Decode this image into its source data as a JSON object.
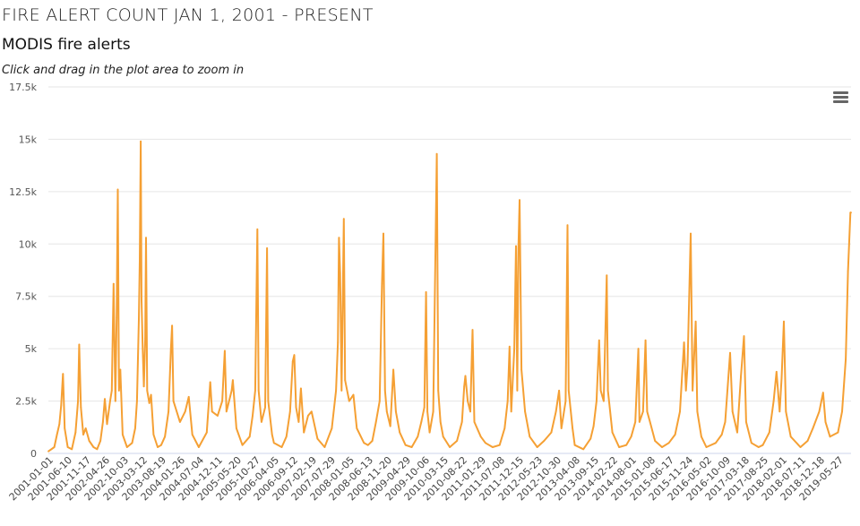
{
  "page_title": "FIRE ALERT COUNT JAN 1, 2001 - PRESENT",
  "chart_title": "MODIS fire alerts",
  "zoom_hint": "Click and drag in the plot area to zoom in",
  "menu_icon": "hamburger-menu-icon",
  "colors": {
    "series": "#f5a034",
    "grid": "#e6e6e6",
    "axis": "#ccd6eb"
  },
  "chart_data": {
    "type": "line",
    "title": "MODIS fire alerts",
    "xlabel": "",
    "ylabel": "",
    "grid": true,
    "ylim": [
      0,
      17500
    ],
    "xlim": [
      "2001-01-01",
      "2019-09-15"
    ],
    "yticks": [
      {
        "value": 0,
        "label": "0"
      },
      {
        "value": 2500,
        "label": "2.5k"
      },
      {
        "value": 5000,
        "label": "5k"
      },
      {
        "value": 7500,
        "label": "7.5k"
      },
      {
        "value": 10000,
        "label": "10k"
      },
      {
        "value": 12500,
        "label": "12.5k"
      },
      {
        "value": 15000,
        "label": "15k"
      },
      {
        "value": 17500,
        "label": "17.5k"
      }
    ],
    "xtick_labels": [
      "2001-01-01",
      "2001-06-10",
      "2001-11-17",
      "2002-04-26",
      "2002-10-03",
      "2003-03-12",
      "2003-08-19",
      "2004-01-26",
      "2004-07-04",
      "2004-12-11",
      "2005-05-20",
      "2005-10-27",
      "2006-04-05",
      "2006-09-12",
      "2007-02-19",
      "2007-07-29",
      "2008-01-05",
      "2008-06-13",
      "2008-11-20",
      "2009-04-29",
      "2009-10-06",
      "2010-03-15",
      "2010-08-22",
      "2011-01-29",
      "2011-07-08",
      "2011-12-15",
      "2012-05-23",
      "2012-10-30",
      "2013-04-08",
      "2013-09-15",
      "2014-02-22",
      "2014-08-01",
      "2015-01-08",
      "2015-06-17",
      "2015-11-24",
      "2016-05-02",
      "2016-10-09",
      "2017-03-18",
      "2017-08-25",
      "2018-02-01",
      "2018-07-11",
      "2018-12-18",
      "2019-05-27"
    ],
    "series": [
      {
        "values": [
          [
            "2001-01-01",
            100
          ],
          [
            "2001-02-20",
            300
          ],
          [
            "2001-03-15",
            900
          ],
          [
            "2001-04-05",
            1400
          ],
          [
            "2001-04-20",
            2300
          ],
          [
            "2001-05-05",
            3800
          ],
          [
            "2001-05-20",
            1200
          ],
          [
            "2001-06-15",
            300
          ],
          [
            "2001-07-20",
            200
          ],
          [
            "2001-08-20",
            1000
          ],
          [
            "2001-09-10",
            2500
          ],
          [
            "2001-09-20",
            5200
          ],
          [
            "2001-10-05",
            2200
          ],
          [
            "2001-10-25",
            900
          ],
          [
            "2001-11-15",
            1200
          ],
          [
            "2001-12-15",
            600
          ],
          [
            "2002-01-20",
            300
          ],
          [
            "2002-02-20",
            200
          ],
          [
            "2002-03-20",
            600
          ],
          [
            "2002-04-10",
            1500
          ],
          [
            "2002-04-26",
            2600
          ],
          [
            "2002-05-15",
            1400
          ],
          [
            "2002-06-10",
            2500
          ],
          [
            "2002-06-25",
            3000
          ],
          [
            "2002-07-10",
            8100
          ],
          [
            "2002-07-25",
            2500
          ],
          [
            "2002-08-05",
            6500
          ],
          [
            "2002-08-15",
            12600
          ],
          [
            "2002-08-25",
            3000
          ],
          [
            "2002-09-05",
            4000
          ],
          [
            "2002-09-25",
            900
          ],
          [
            "2002-11-01",
            300
          ],
          [
            "2002-12-15",
            500
          ],
          [
            "2003-01-10",
            1200
          ],
          [
            "2003-01-25",
            2500
          ],
          [
            "2003-02-10",
            6400
          ],
          [
            "2003-02-18",
            9200
          ],
          [
            "2003-02-26",
            14900
          ],
          [
            "2003-03-05",
            7300
          ],
          [
            "2003-03-15",
            5000
          ],
          [
            "2003-03-25",
            3200
          ],
          [
            "2003-04-05",
            5500
          ],
          [
            "2003-04-12",
            10300
          ],
          [
            "2003-04-22",
            3000
          ],
          [
            "2003-05-10",
            2400
          ],
          [
            "2003-05-25",
            2800
          ],
          [
            "2003-06-15",
            900
          ],
          [
            "2003-07-20",
            300
          ],
          [
            "2003-08-19",
            400
          ],
          [
            "2003-09-20",
            800
          ],
          [
            "2003-10-20",
            2000
          ],
          [
            "2003-11-10",
            5000
          ],
          [
            "2003-11-20",
            6100
          ],
          [
            "2003-12-01",
            2500
          ],
          [
            "2004-01-26",
            1500
          ],
          [
            "2004-03-10",
            2000
          ],
          [
            "2004-04-10",
            2700
          ],
          [
            "2004-05-10",
            900
          ],
          [
            "2004-07-04",
            300
          ],
          [
            "2004-09-10",
            1000
          ],
          [
            "2004-10-10",
            3400
          ],
          [
            "2004-10-25",
            2000
          ],
          [
            "2004-12-11",
            1800
          ],
          [
            "2005-01-20",
            2500
          ],
          [
            "2005-02-10",
            4900
          ],
          [
            "2005-02-25",
            2000
          ],
          [
            "2005-04-10",
            3000
          ],
          [
            "2005-04-20",
            3500
          ],
          [
            "2005-05-20",
            1200
          ],
          [
            "2005-07-10",
            400
          ],
          [
            "2005-09-10",
            800
          ],
          [
            "2005-10-05",
            1800
          ],
          [
            "2005-10-27",
            3000
          ],
          [
            "2005-11-15",
            10700
          ],
          [
            "2005-11-25",
            3000
          ],
          [
            "2005-12-20",
            1500
          ],
          [
            "2006-01-20",
            2200
          ],
          [
            "2006-02-05",
            9800
          ],
          [
            "2006-02-15",
            2500
          ],
          [
            "2006-03-20",
            900
          ],
          [
            "2006-04-05",
            500
          ],
          [
            "2006-06-10",
            300
          ],
          [
            "2006-07-20",
            800
          ],
          [
            "2006-08-20",
            2000
          ],
          [
            "2006-09-12",
            4400
          ],
          [
            "2006-09-25",
            4700
          ],
          [
            "2006-10-10",
            2200
          ],
          [
            "2006-11-01",
            1500
          ],
          [
            "2006-11-20",
            3100
          ],
          [
            "2006-12-15",
            1000
          ],
          [
            "2007-01-20",
            1800
          ],
          [
            "2007-02-19",
            2000
          ],
          [
            "2007-04-10",
            700
          ],
          [
            "2007-06-10",
            300
          ],
          [
            "2007-08-10",
            1200
          ],
          [
            "2007-09-15",
            3000
          ],
          [
            "2007-10-01",
            5300
          ],
          [
            "2007-10-10",
            10300
          ],
          [
            "2007-10-20",
            8600
          ],
          [
            "2007-11-01",
            3000
          ],
          [
            "2007-11-20",
            11200
          ],
          [
            "2007-12-01",
            3500
          ],
          [
            "2008-01-05",
            2500
          ],
          [
            "2008-02-10",
            2800
          ],
          [
            "2008-03-10",
            1200
          ],
          [
            "2008-05-10",
            500
          ],
          [
            "2008-06-13",
            400
          ],
          [
            "2008-07-20",
            600
          ],
          [
            "2008-08-20",
            1500
          ],
          [
            "2008-09-20",
            2500
          ],
          [
            "2008-10-10",
            8100
          ],
          [
            "2008-10-22",
            10500
          ],
          [
            "2008-11-05",
            3000
          ],
          [
            "2008-11-20",
            2000
          ],
          [
            "2008-12-20",
            1300
          ],
          [
            "2009-01-15",
            4000
          ],
          [
            "2009-02-05",
            2000
          ],
          [
            "2009-03-10",
            1000
          ],
          [
            "2009-04-29",
            400
          ],
          [
            "2009-06-20",
            300
          ],
          [
            "2009-08-10",
            800
          ],
          [
            "2009-09-10",
            1500
          ],
          [
            "2009-10-06",
            2200
          ],
          [
            "2009-10-20",
            7700
          ],
          [
            "2009-11-01",
            2000
          ],
          [
            "2009-11-20",
            1000
          ],
          [
            "2009-12-20",
            2000
          ],
          [
            "2010-01-20",
            14300
          ],
          [
            "2010-02-01",
            3000
          ],
          [
            "2010-02-20",
            1500
          ],
          [
            "2010-03-15",
            800
          ],
          [
            "2010-05-10",
            300
          ],
          [
            "2010-07-10",
            600
          ],
          [
            "2010-08-22",
            1500
          ],
          [
            "2010-09-10",
            3200
          ],
          [
            "2010-09-20",
            3700
          ],
          [
            "2010-10-10",
            2500
          ],
          [
            "2010-11-01",
            2000
          ],
          [
            "2010-11-20",
            5900
          ],
          [
            "2010-12-05",
            1500
          ],
          [
            "2011-01-29",
            800
          ],
          [
            "2011-03-10",
            500
          ],
          [
            "2011-05-10",
            300
          ],
          [
            "2011-07-08",
            400
          ],
          [
            "2011-08-20",
            1200
          ],
          [
            "2011-09-15",
            2500
          ],
          [
            "2011-10-01",
            5100
          ],
          [
            "2011-10-15",
            2000
          ],
          [
            "2011-11-10",
            5000
          ],
          [
            "2011-11-25",
            9900
          ],
          [
            "2011-12-05",
            3000
          ],
          [
            "2011-12-15",
            9800
          ],
          [
            "2011-12-25",
            12100
          ],
          [
            "2012-01-10",
            4000
          ],
          [
            "2012-02-10",
            2000
          ],
          [
            "2012-03-20",
            800
          ],
          [
            "2012-05-23",
            300
          ],
          [
            "2012-07-20",
            600
          ],
          [
            "2012-09-20",
            1000
          ],
          [
            "2012-10-30",
            2000
          ],
          [
            "2012-11-25",
            3000
          ],
          [
            "2012-12-15",
            1200
          ],
          [
            "2013-01-20",
            2500
          ],
          [
            "2013-02-05",
            10900
          ],
          [
            "2013-02-15",
            3000
          ],
          [
            "2013-03-20",
            1200
          ],
          [
            "2013-04-08",
            400
          ],
          [
            "2013-06-20",
            200
          ],
          [
            "2013-08-20",
            700
          ],
          [
            "2013-09-15",
            1300
          ],
          [
            "2013-10-10",
            2500
          ],
          [
            "2013-11-01",
            5400
          ],
          [
            "2013-11-15",
            3000
          ],
          [
            "2013-12-10",
            2500
          ],
          [
            "2014-01-05",
            8500
          ],
          [
            "2014-01-15",
            3000
          ],
          [
            "2014-02-22",
            1000
          ],
          [
            "2014-04-20",
            300
          ],
          [
            "2014-06-20",
            400
          ],
          [
            "2014-08-01",
            800
          ],
          [
            "2014-09-05",
            1500
          ],
          [
            "2014-10-01",
            5000
          ],
          [
            "2014-10-10",
            1500
          ],
          [
            "2014-11-10",
            2000
          ],
          [
            "2014-12-01",
            5400
          ],
          [
            "2014-12-15",
            2000
          ],
          [
            "2015-01-08",
            1500
          ],
          [
            "2015-02-20",
            600
          ],
          [
            "2015-04-20",
            300
          ],
          [
            "2015-06-17",
            500
          ],
          [
            "2015-08-10",
            900
          ],
          [
            "2015-09-20",
            2000
          ],
          [
            "2015-10-25",
            5300
          ],
          [
            "2015-11-10",
            3000
          ],
          [
            "2015-11-24",
            4200
          ],
          [
            "2015-12-20",
            10500
          ],
          [
            "2016-01-05",
            3000
          ],
          [
            "2016-02-01",
            6300
          ],
          [
            "2016-02-15",
            2000
          ],
          [
            "2016-03-20",
            800
          ],
          [
            "2016-05-02",
            300
          ],
          [
            "2016-07-20",
            500
          ],
          [
            "2016-09-10",
            900
          ],
          [
            "2016-10-09",
            1500
          ],
          [
            "2016-11-20",
            4800
          ],
          [
            "2016-12-10",
            2000
          ],
          [
            "2017-01-20",
            1000
          ],
          [
            "2017-02-20",
            3700
          ],
          [
            "2017-03-18",
            5600
          ],
          [
            "2017-04-05",
            1500
          ],
          [
            "2017-05-20",
            500
          ],
          [
            "2017-07-20",
            300
          ],
          [
            "2017-08-25",
            400
          ],
          [
            "2017-10-20",
            1000
          ],
          [
            "2017-11-25",
            2500
          ],
          [
            "2017-12-20",
            3900
          ],
          [
            "2018-01-15",
            2000
          ],
          [
            "2018-02-01",
            3600
          ],
          [
            "2018-02-20",
            6300
          ],
          [
            "2018-03-10",
            2000
          ],
          [
            "2018-04-20",
            800
          ],
          [
            "2018-07-11",
            300
          ],
          [
            "2018-09-10",
            600
          ],
          [
            "2018-10-25",
            1200
          ],
          [
            "2018-12-18",
            2000
          ],
          [
            "2019-01-20",
            2900
          ],
          [
            "2019-02-10",
            1500
          ],
          [
            "2019-03-20",
            800
          ],
          [
            "2019-05-27",
            1000
          ],
          [
            "2019-07-01",
            2000
          ],
          [
            "2019-08-01",
            4500
          ],
          [
            "2019-08-20",
            8700
          ],
          [
            "2019-09-10",
            11500
          ],
          [
            "2019-09-15",
            11500
          ]
        ]
      }
    ]
  }
}
